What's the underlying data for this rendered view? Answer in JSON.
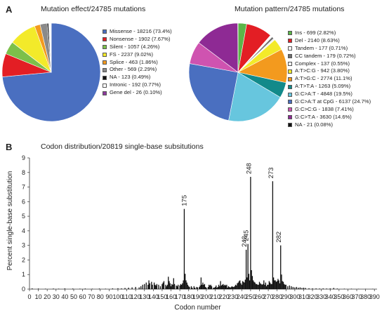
{
  "panel_a_label": "A",
  "panel_b_label": "B",
  "chart_data": [
    {
      "type": "pie",
      "title": "Mutation effect/24785 mutations",
      "slices": [
        {
          "label": "Missense - 18216 (73.4%)",
          "value": 73.4,
          "color": "#4a6fc0"
        },
        {
          "label": "Nonsense - 1902 (7.67%)",
          "value": 7.67,
          "color": "#e31e24"
        },
        {
          "label": "Silent - 1057 (4.26%)",
          "value": 4.26,
          "color": "#7cc04a"
        },
        {
          "label": "FS - 2237 (9.02%)",
          "value": 9.02,
          "color": "#f3ea2a"
        },
        {
          "label": "Splice - 463 (1.86%)",
          "value": 1.86,
          "color": "#f39a1e"
        },
        {
          "label": "Other - 569 (2.29%)",
          "value": 2.29,
          "color": "#8a8a8a"
        },
        {
          "label": "NA - 123 (0.49%)",
          "value": 0.49,
          "color": "#111111"
        },
        {
          "label": "Intronic - 192 (0.77%)",
          "value": 0.77,
          "color": "#ffffff"
        },
        {
          "label": "Gene del - 26 (0.10%)",
          "value": 0.1,
          "color": "#8e3a9e"
        }
      ]
    },
    {
      "type": "pie",
      "title": "Mutation pattern/24785 mutations",
      "slices": [
        {
          "label": "Ins - 699 (2.82%)",
          "value": 2.82,
          "color": "#5bb548"
        },
        {
          "label": "Del - 2140 (8.63%)",
          "value": 8.63,
          "color": "#e31e24"
        },
        {
          "label": "Tandem - 177 (0.71%)",
          "value": 0.71,
          "color": "#ffffff"
        },
        {
          "label": "CC tandem - 179 (0.72%)",
          "value": 0.72,
          "color": "#6e6e6e"
        },
        {
          "label": "Complex - 137 (0.55%)",
          "value": 0.55,
          "color": "#f0f0f0"
        },
        {
          "label": "A:T>C:G - 942 (3.80%)",
          "value": 3.8,
          "color": "#f3ea2a"
        },
        {
          "label": "A:T>G:C - 2774 (11.1%)",
          "value": 11.1,
          "color": "#f39a1e"
        },
        {
          "label": "A:T>T:A - 1263 (5.09%)",
          "value": 5.09,
          "color": "#128a8a"
        },
        {
          "label": "G:C>A:T - 4848 (19.5%)",
          "value": 19.5,
          "color": "#67c6de"
        },
        {
          "label": "G:C>A:T at CpG - 6137 (24.7%)",
          "value": 24.7,
          "color": "#4a6fc0"
        },
        {
          "label": "G:C>C:G - 1838 (7.41%)",
          "value": 7.41,
          "color": "#cf53b0"
        },
        {
          "label": "G:C>T:A - 3630 (14.6%)",
          "value": 14.6,
          "color": "#8e2a94"
        },
        {
          "label": "NA - 21 (0.08%)",
          "value": 0.08,
          "color": "#111111"
        }
      ]
    },
    {
      "type": "bar",
      "title": "Codon distribution/20819 single-base subsitutions",
      "xlabel": "Codon number",
      "ylabel": "Percent single-base substitution",
      "xlim": [
        0,
        393
      ],
      "ylim": [
        0,
        9
      ],
      "xticks": [
        0,
        10,
        20,
        30,
        40,
        50,
        60,
        70,
        80,
        90,
        100,
        110,
        120,
        130,
        140,
        150,
        160,
        170,
        180,
        190,
        200,
        210,
        220,
        230,
        240,
        250,
        260,
        270,
        280,
        290,
        300,
        310,
        320,
        330,
        340,
        350,
        360,
        370,
        380,
        390
      ],
      "yticks": [
        0,
        1,
        2,
        3,
        4,
        5,
        6,
        7,
        8,
        9
      ],
      "bar_color": "#111111",
      "annotations": [
        {
          "codon": 175,
          "value": 5.5,
          "label": "175"
        },
        {
          "codon": 245,
          "value": 3.1,
          "label": "245"
        },
        {
          "codon": 248,
          "value": 7.7,
          "label": "248"
        },
        {
          "codon": 243,
          "value": 2.7,
          "label": "243"
        },
        {
          "codon": 273,
          "value": 7.4,
          "label": "273"
        },
        {
          "codon": 282,
          "value": 3.0,
          "label": "282"
        }
      ],
      "x": [
        3,
        10,
        18,
        27,
        33,
        40,
        49,
        57,
        63,
        71,
        79,
        86,
        94,
        100,
        104,
        108,
        112,
        116,
        120,
        124,
        126,
        128,
        130,
        132,
        134,
        135,
        136,
        138,
        139,
        141,
        142,
        143,
        144,
        146,
        148,
        150,
        151,
        152,
        154,
        155,
        156,
        157,
        158,
        159,
        160,
        161,
        162,
        163,
        164,
        166,
        167,
        168,
        170,
        171,
        172,
        173,
        174,
        175,
        176,
        177,
        178,
        179,
        180,
        181,
        183,
        184,
        186,
        187,
        189,
        190,
        192,
        193,
        194,
        195,
        196,
        197,
        198,
        199,
        200,
        202,
        203,
        204,
        205,
        206,
        208,
        209,
        210,
        211,
        212,
        213,
        214,
        215,
        216,
        217,
        218,
        219,
        220,
        221,
        222,
        223,
        224,
        225,
        226,
        227,
        228,
        229,
        230,
        231,
        232,
        233,
        234,
        235,
        236,
        237,
        238,
        239,
        240,
        241,
        242,
        243,
        244,
        245,
        246,
        247,
        248,
        249,
        250,
        251,
        252,
        253,
        254,
        255,
        256,
        257,
        258,
        259,
        260,
        261,
        262,
        263,
        264,
        265,
        266,
        267,
        268,
        269,
        270,
        271,
        272,
        273,
        274,
        275,
        276,
        277,
        278,
        279,
        280,
        281,
        282,
        283,
        284,
        285,
        286,
        287,
        288,
        289,
        290,
        292,
        294,
        296,
        298,
        300,
        302,
        304,
        306,
        308,
        310,
        312,
        316,
        320,
        324,
        328,
        332,
        336,
        340,
        344,
        348,
        356,
        364,
        372,
        380,
        388
      ],
      "values": [
        0.05,
        0.04,
        0.03,
        0.04,
        0.03,
        0.05,
        0.04,
        0.03,
        0.04,
        0.03,
        0.04,
        0.03,
        0.05,
        0.06,
        0.05,
        0.08,
        0.1,
        0.12,
        0.15,
        0.12,
        0.2,
        0.3,
        0.35,
        0.45,
        0.3,
        0.6,
        0.4,
        0.5,
        0.3,
        0.45,
        0.3,
        0.25,
        0.35,
        0.3,
        0.2,
        0.35,
        0.45,
        0.55,
        0.3,
        0.2,
        0.3,
        0.85,
        0.55,
        0.4,
        0.2,
        0.35,
        0.3,
        0.75,
        0.35,
        0.25,
        0.2,
        0.3,
        0.25,
        0.35,
        0.3,
        0.4,
        0.6,
        5.5,
        1.05,
        0.6,
        0.45,
        0.3,
        0.2,
        0.15,
        0.2,
        0.1,
        0.2,
        0.1,
        0.15,
        0.12,
        0.15,
        0.25,
        0.8,
        0.3,
        0.45,
        0.3,
        0.35,
        0.15,
        0.1,
        0.15,
        0.3,
        0.25,
        0.3,
        0.2,
        0.1,
        0.1,
        0.15,
        0.25,
        0.1,
        0.15,
        0.3,
        0.2,
        0.55,
        0.25,
        0.3,
        0.35,
        0.25,
        0.3,
        0.25,
        0.3,
        0.1,
        0.2,
        0.15,
        0.1,
        0.15,
        0.2,
        0.15,
        0.15,
        0.2,
        0.3,
        0.25,
        0.4,
        0.45,
        0.55,
        0.6,
        0.4,
        0.3,
        0.55,
        0.5,
        0.45,
        0.65,
        2.7,
        0.8,
        3.1,
        1.05,
        0.6,
        7.7,
        1.3,
        0.9,
        0.6,
        0.5,
        0.45,
        0.35,
        0.35,
        0.3,
        0.3,
        0.5,
        0.4,
        0.35,
        0.3,
        0.35,
        0.6,
        0.3,
        0.45,
        0.2,
        0.3,
        0.3,
        0.55,
        0.45,
        0.35,
        0.35,
        7.4,
        0.8,
        0.6,
        0.6,
        0.5,
        0.55,
        0.7,
        0.6,
        0.4,
        3.0,
        1.0,
        0.55,
        0.5,
        0.35,
        0.3,
        0.3,
        0.2,
        0.25,
        0.2,
        0.15,
        0.12,
        0.15,
        0.1,
        0.12,
        0.08,
        0.1,
        0.08,
        0.06,
        0.05,
        0.05,
        0.04,
        0.05,
        0.04,
        0.05,
        0.08,
        0.04,
        0.03,
        0.03,
        0.02,
        0.02,
        0.02
      ]
    }
  ]
}
